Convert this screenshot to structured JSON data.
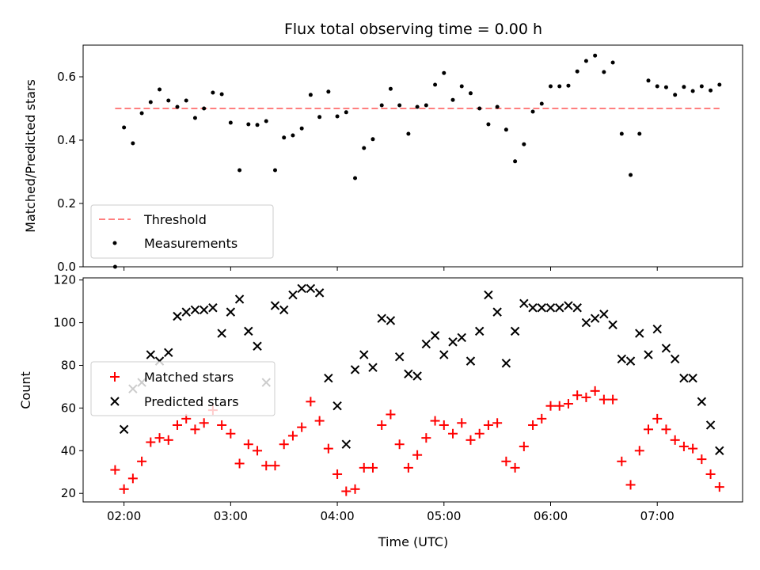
{
  "chart_data": [
    {
      "type": "scatter",
      "title": "Flux total observing time = 0.00 h",
      "xlabel": "",
      "ylabel": "Matched/Predicted stars",
      "xlim": [
        "01:37",
        "07:48"
      ],
      "ylim": [
        0,
        0.7
      ],
      "yticks": [
        0.0,
        0.2,
        0.4,
        0.6
      ],
      "ytick_labels": [
        "0.0",
        "0.2",
        "0.4",
        "0.6"
      ],
      "legend_position": "lower-left",
      "series": [
        {
          "name": "Threshold",
          "style": "dashed-line",
          "color": "#ff7f7f",
          "points": [
            [
              "01:55",
              0.5
            ],
            [
              "07:35",
              0.5
            ]
          ]
        },
        {
          "name": "Measurements",
          "style": "dot",
          "color": "#000000",
          "points": [
            [
              "01:55",
              0.0
            ],
            [
              "02:00",
              0.44
            ],
            [
              "02:05",
              0.39
            ],
            [
              "02:10",
              0.485
            ],
            [
              "02:15",
              0.52
            ],
            [
              "02:20",
              0.56
            ],
            [
              "02:25",
              0.525
            ],
            [
              "02:30",
              0.505
            ],
            [
              "02:35",
              0.525
            ],
            [
              "02:40",
              0.47
            ],
            [
              "02:45",
              0.5
            ],
            [
              "02:50",
              0.55
            ],
            [
              "02:55",
              0.545
            ],
            [
              "03:00",
              0.455
            ],
            [
              "03:05",
              0.305
            ],
            [
              "03:10",
              0.45
            ],
            [
              "03:15",
              0.448
            ],
            [
              "03:20",
              0.46
            ],
            [
              "03:25",
              0.305
            ],
            [
              "03:30",
              0.408
            ],
            [
              "03:35",
              0.415
            ],
            [
              "03:40",
              0.437
            ],
            [
              "03:45",
              0.543
            ],
            [
              "03:50",
              0.473
            ],
            [
              "03:55",
              0.553
            ],
            [
              "04:00",
              0.475
            ],
            [
              "04:05",
              0.488
            ],
            [
              "04:10",
              0.28
            ],
            [
              "04:15",
              0.375
            ],
            [
              "04:20",
              0.403
            ],
            [
              "04:25",
              0.51
            ],
            [
              "04:30",
              0.562
            ],
            [
              "04:35",
              0.51
            ],
            [
              "04:40",
              0.42
            ],
            [
              "04:45",
              0.505
            ],
            [
              "04:50",
              0.51
            ],
            [
              "04:55",
              0.575
            ],
            [
              "05:00",
              0.612
            ],
            [
              "05:05",
              0.527
            ],
            [
              "05:10",
              0.57
            ],
            [
              "05:15",
              0.548
            ],
            [
              "05:20",
              0.5
            ],
            [
              "05:25",
              0.45
            ],
            [
              "05:30",
              0.505
            ],
            [
              "05:35",
              0.433
            ],
            [
              "05:40",
              0.333
            ],
            [
              "05:45",
              0.387
            ],
            [
              "05:50",
              0.49
            ],
            [
              "05:55",
              0.515
            ],
            [
              "06:00",
              0.57
            ],
            [
              "06:05",
              0.57
            ],
            [
              "06:10",
              0.572
            ],
            [
              "06:15",
              0.617
            ],
            [
              "06:20",
              0.65
            ],
            [
              "06:25",
              0.667
            ],
            [
              "06:30",
              0.615
            ],
            [
              "06:35",
              0.645
            ],
            [
              "06:40",
              0.42
            ],
            [
              "06:45",
              0.29
            ],
            [
              "06:50",
              0.42
            ],
            [
              "06:55",
              0.588
            ],
            [
              "07:00",
              0.57
            ],
            [
              "07:05",
              0.567
            ],
            [
              "07:10",
              0.543
            ],
            [
              "07:15",
              0.568
            ],
            [
              "07:20",
              0.555
            ],
            [
              "07:25",
              0.57
            ],
            [
              "07:30",
              0.557
            ],
            [
              "07:35",
              0.575
            ]
          ]
        }
      ]
    },
    {
      "type": "scatter",
      "title": "",
      "xlabel": "Time (UTC)",
      "ylabel": "Count",
      "xlim": [
        "01:37",
        "07:48"
      ],
      "ylim": [
        16,
        121
      ],
      "xticks": [
        "02:00",
        "03:00",
        "04:00",
        "05:00",
        "06:00",
        "07:00"
      ],
      "yticks": [
        20,
        40,
        60,
        80,
        100,
        120
      ],
      "ytick_labels": [
        "20",
        "40",
        "60",
        "80",
        "100",
        "120"
      ],
      "legend_position": "center-left",
      "series": [
        {
          "name": "Matched stars",
          "marker": "plus",
          "color": "#ff0000",
          "points": [
            [
              "01:55",
              31
            ],
            [
              "02:00",
              22
            ],
            [
              "02:05",
              27
            ],
            [
              "02:10",
              35
            ],
            [
              "02:15",
              44
            ],
            [
              "02:20",
              46
            ],
            [
              "02:25",
              45
            ],
            [
              "02:30",
              52
            ],
            [
              "02:35",
              55
            ],
            [
              "02:40",
              50
            ],
            [
              "02:45",
              53
            ],
            [
              "02:50",
              59
            ],
            [
              "02:55",
              52
            ],
            [
              "03:00",
              48
            ],
            [
              "03:05",
              34
            ],
            [
              "03:10",
              43
            ],
            [
              "03:15",
              40
            ],
            [
              "03:20",
              33
            ],
            [
              "03:25",
              33
            ],
            [
              "03:30",
              43
            ],
            [
              "03:35",
              47
            ],
            [
              "03:40",
              51
            ],
            [
              "03:45",
              63
            ],
            [
              "03:50",
              54
            ],
            [
              "03:55",
              41
            ],
            [
              "04:00",
              29
            ],
            [
              "04:05",
              21
            ],
            [
              "04:10",
              22
            ],
            [
              "04:15",
              32
            ],
            [
              "04:20",
              32
            ],
            [
              "04:25",
              52
            ],
            [
              "04:30",
              57
            ],
            [
              "04:35",
              43
            ],
            [
              "04:40",
              32
            ],
            [
              "04:45",
              38
            ],
            [
              "04:50",
              46
            ],
            [
              "04:55",
              54
            ],
            [
              "05:00",
              52
            ],
            [
              "05:05",
              48
            ],
            [
              "05:10",
              53
            ],
            [
              "05:15",
              45
            ],
            [
              "05:20",
              48
            ],
            [
              "05:25",
              52
            ],
            [
              "05:30",
              53
            ],
            [
              "05:35",
              35
            ],
            [
              "05:40",
              32
            ],
            [
              "05:45",
              42
            ],
            [
              "05:50",
              52
            ],
            [
              "05:55",
              55
            ],
            [
              "06:00",
              61
            ],
            [
              "06:05",
              61
            ],
            [
              "06:10",
              62
            ],
            [
              "06:15",
              66
            ],
            [
              "06:20",
              65
            ],
            [
              "06:25",
              68
            ],
            [
              "06:30",
              64
            ],
            [
              "06:35",
              64
            ],
            [
              "06:40",
              35
            ],
            [
              "06:45",
              24
            ],
            [
              "06:50",
              40
            ],
            [
              "06:55",
              50
            ],
            [
              "07:00",
              55
            ],
            [
              "07:05",
              50
            ],
            [
              "07:10",
              45
            ],
            [
              "07:15",
              42
            ],
            [
              "07:20",
              41
            ],
            [
              "07:25",
              36
            ],
            [
              "07:30",
              29
            ],
            [
              "07:35",
              23
            ]
          ]
        },
        {
          "name": "Predicted stars",
          "marker": "x",
          "color": "#000000",
          "points": [
            [
              "02:00",
              50
            ],
            [
              "02:05",
              69
            ],
            [
              "02:10",
              72
            ],
            [
              "02:15",
              85
            ],
            [
              "02:20",
              82
            ],
            [
              "02:25",
              86
            ],
            [
              "02:30",
              103
            ],
            [
              "02:35",
              105
            ],
            [
              "02:40",
              106
            ],
            [
              "02:45",
              106
            ],
            [
              "02:50",
              107
            ],
            [
              "02:55",
              95
            ],
            [
              "03:00",
              105
            ],
            [
              "03:05",
              111
            ],
            [
              "03:10",
              96
            ],
            [
              "03:15",
              89
            ],
            [
              "03:20",
              72
            ],
            [
              "03:25",
              108
            ],
            [
              "03:30",
              106
            ],
            [
              "03:35",
              113
            ],
            [
              "03:40",
              116
            ],
            [
              "03:45",
              116
            ],
            [
              "03:50",
              114
            ],
            [
              "03:55",
              74
            ],
            [
              "04:00",
              61
            ],
            [
              "04:05",
              43
            ],
            [
              "04:10",
              78
            ],
            [
              "04:15",
              85
            ],
            [
              "04:20",
              79
            ],
            [
              "04:25",
              102
            ],
            [
              "04:30",
              101
            ],
            [
              "04:35",
              84
            ],
            [
              "04:40",
              76
            ],
            [
              "04:45",
              75
            ],
            [
              "04:50",
              90
            ],
            [
              "04:55",
              94
            ],
            [
              "05:00",
              85
            ],
            [
              "05:05",
              91
            ],
            [
              "05:10",
              93
            ],
            [
              "05:15",
              82
            ],
            [
              "05:20",
              96
            ],
            [
              "05:25",
              113
            ],
            [
              "05:30",
              105
            ],
            [
              "05:35",
              81
            ],
            [
              "05:40",
              96
            ],
            [
              "05:45",
              109
            ],
            [
              "05:50",
              107
            ],
            [
              "05:55",
              107
            ],
            [
              "06:00",
              107
            ],
            [
              "06:05",
              107
            ],
            [
              "06:10",
              108
            ],
            [
              "06:15",
              107
            ],
            [
              "06:20",
              100
            ],
            [
              "06:25",
              102
            ],
            [
              "06:30",
              104
            ],
            [
              "06:35",
              99
            ],
            [
              "06:40",
              83
            ],
            [
              "06:45",
              82
            ],
            [
              "06:50",
              95
            ],
            [
              "06:55",
              85
            ],
            [
              "07:00",
              97
            ],
            [
              "07:05",
              88
            ],
            [
              "07:10",
              83
            ],
            [
              "07:15",
              74
            ],
            [
              "07:20",
              74
            ],
            [
              "07:25",
              63
            ],
            [
              "07:30",
              52
            ],
            [
              "07:35",
              40
            ]
          ]
        }
      ]
    }
  ]
}
